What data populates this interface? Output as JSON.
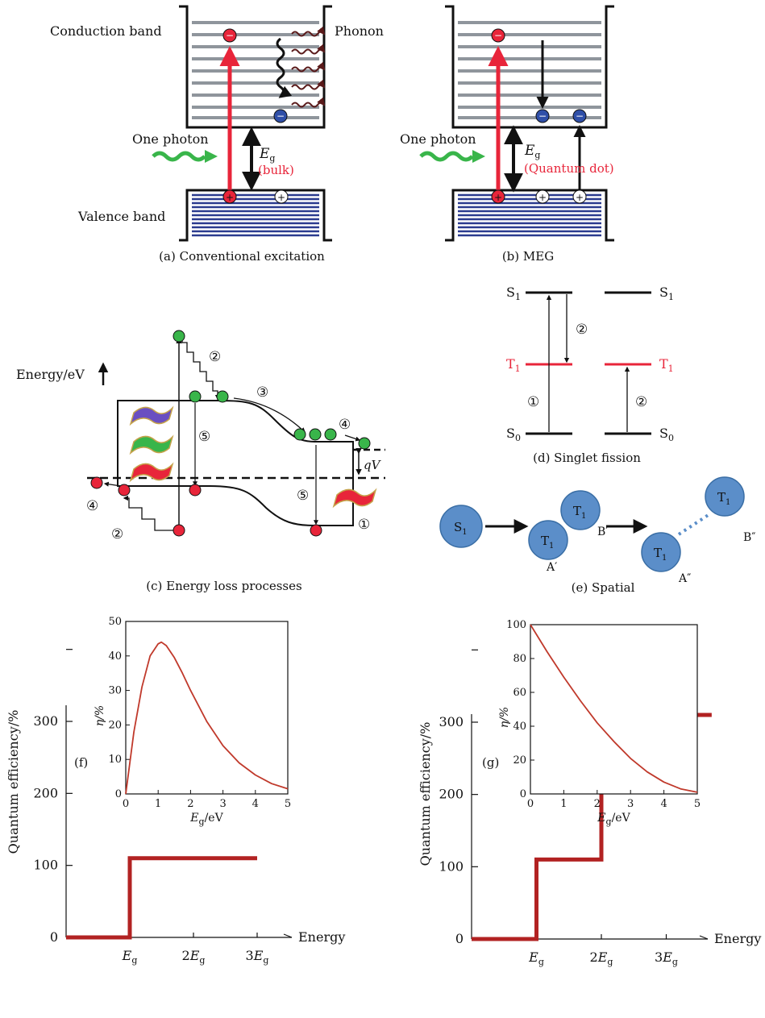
{
  "panel_a": {
    "caption": "(a) Conventional excitation",
    "conduction_band": "Conduction band",
    "valence_band": "Valence band",
    "phonon": "Phonon",
    "one_photon": "One photon",
    "eg": "E",
    "eg_sub": "g",
    "eg_note": "(bulk)"
  },
  "panel_b": {
    "caption": "(b) MEG",
    "one_photon": "One photon",
    "eg": "E",
    "eg_sub": "g",
    "eg_note": "(Quantum dot)"
  },
  "panel_c": {
    "caption": "(c) Energy loss processes",
    "energy_label": "Energy/eV",
    "qv": "qV",
    "markers": [
      "②",
      "③",
      "④",
      "⑤",
      "⑤",
      "④",
      "②",
      "①"
    ]
  },
  "panel_d": {
    "caption": "(d) Singlet fission",
    "s1": "S",
    "t1": "T",
    "s0": "S",
    "sub1": "1",
    "sub0": "0",
    "m1": "①",
    "m2": "②"
  },
  "panel_e": {
    "caption": "(e) Spatial",
    "s1": "S",
    "t1": "T",
    "sub": "1",
    "a1": "A′",
    "b1": "B′",
    "a2": "A″",
    "b2": "B″"
  },
  "colors": {
    "red": "#e8253a",
    "blue_band": "#2b3b8f",
    "gray_level": "#8f959c",
    "green": "#39b54a",
    "electron_blue": "#2f4fa8",
    "curve": "#c0392b",
    "dot_blue": "#5b8ec9"
  },
  "chart_data": [
    {
      "id": "f",
      "type": "line",
      "panel_label": "(f)",
      "ylabel": "Quantum efficiency/%",
      "xlabel": "Energy",
      "x_ticks": [
        "E_g",
        "2E_g",
        "3E_g"
      ],
      "y_ticks": [
        0,
        100,
        200,
        300
      ],
      "series": [
        {
          "x": [
            0,
            1,
            1,
            3.0
          ],
          "y": [
            0,
            0,
            110,
            110
          ]
        }
      ]
    },
    {
      "id": "f-inset",
      "type": "line",
      "xlabel": "E_g/eV",
      "ylabel": "η/%",
      "xlim": [
        0,
        5
      ],
      "ylim": [
        0,
        50
      ],
      "x_ticks": [
        0,
        1,
        2,
        3,
        4,
        5
      ],
      "y_ticks": [
        0,
        10,
        20,
        30,
        40,
        50
      ],
      "series": [
        {
          "x": [
            0,
            0.25,
            0.5,
            0.75,
            1.0,
            1.1,
            1.25,
            1.5,
            1.75,
            2.0,
            2.5,
            3.0,
            3.5,
            4.0,
            4.5,
            5.0
          ],
          "y": [
            0,
            18,
            31,
            40,
            43.5,
            44,
            43,
            39.5,
            35,
            30,
            21,
            14,
            9,
            5.5,
            3,
            1.5
          ]
        }
      ]
    },
    {
      "id": "g",
      "type": "line",
      "panel_label": "(g)",
      "ylabel": "Quantum efficiency/%",
      "xlabel": "Energy",
      "x_ticks": [
        "E_g",
        "2E_g",
        "3E_g"
      ],
      "y_ticks": [
        0,
        100,
        200,
        300
      ],
      "series": [
        {
          "x": [
            0,
            1,
            1,
            2,
            2,
            3,
            3,
            3.7
          ],
          "y": [
            0,
            0,
            110,
            110,
            210,
            210,
            310,
            310
          ]
        }
      ]
    },
    {
      "id": "g-inset",
      "type": "line",
      "xlabel": "E_g/eV",
      "ylabel": "η/%",
      "xlim": [
        0,
        5
      ],
      "ylim": [
        0,
        100
      ],
      "x_ticks": [
        0,
        1,
        2,
        3,
        4,
        5
      ],
      "y_ticks": [
        0,
        20,
        40,
        60,
        80,
        100
      ],
      "series": [
        {
          "x": [
            0,
            0.5,
            1.0,
            1.5,
            2.0,
            2.5,
            3.0,
            3.5,
            4.0,
            4.5,
            5.0
          ],
          "y": [
            100,
            84,
            69,
            55,
            42,
            31,
            21,
            13,
            7,
            3,
            1
          ]
        }
      ]
    }
  ]
}
